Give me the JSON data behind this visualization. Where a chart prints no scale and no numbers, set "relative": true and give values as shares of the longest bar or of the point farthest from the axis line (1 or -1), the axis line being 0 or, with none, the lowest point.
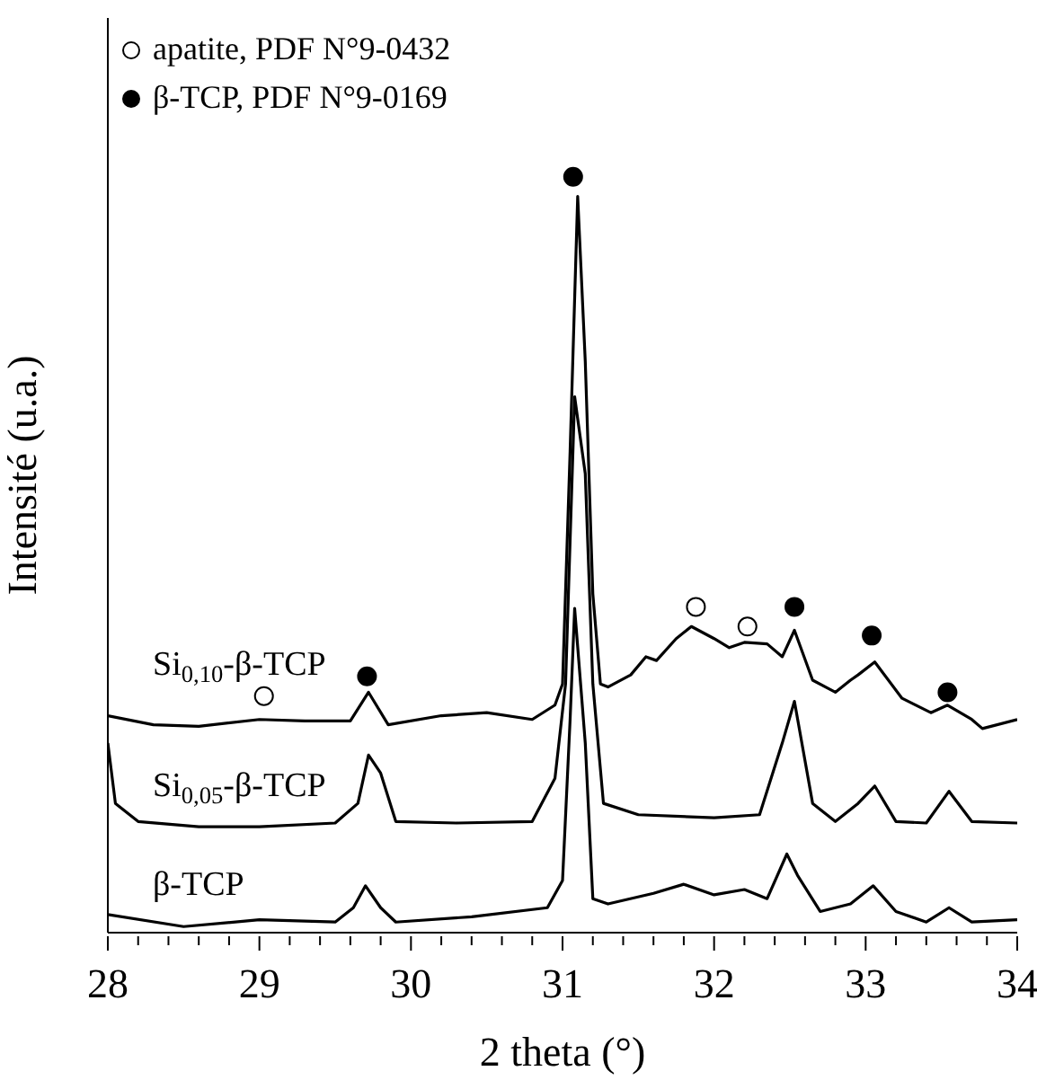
{
  "chart_data": {
    "type": "line",
    "xlabel": "2 theta (°)",
    "ylabel": "Intensité (u.a.)",
    "relative": true,
    "xlim": [
      28,
      34
    ],
    "xticks": [
      28,
      {
        "value": 28.2,
        "label": null
      },
      {
        "value": 28.4,
        "label": null
      },
      {
        "value": 28.6,
        "label": null
      },
      {
        "value": 28.8,
        "label": null
      },
      29,
      {
        "value": 29.2,
        "label": null
      },
      {
        "value": 29.4,
        "label": null
      },
      {
        "value": 29.6,
        "label": null
      },
      {
        "value": 29.8,
        "label": null
      },
      30,
      {
        "value": 30.2,
        "label": null
      },
      {
        "value": 30.4,
        "label": null
      },
      {
        "value": 30.6,
        "label": null
      },
      {
        "value": 30.8,
        "label": null
      },
      31,
      {
        "value": 31.2,
        "label": null
      },
      {
        "value": 31.4,
        "label": null
      },
      {
        "value": 31.6,
        "label": null
      },
      {
        "value": 31.8,
        "label": null
      },
      32,
      {
        "value": 32.2,
        "label": null
      },
      {
        "value": 32.4,
        "label": null
      },
      {
        "value": 32.6,
        "label": null
      },
      {
        "value": 32.8,
        "label": null
      },
      33,
      {
        "value": 33.2,
        "label": null
      },
      {
        "value": 33.4,
        "label": null
      },
      {
        "value": 33.6,
        "label": null
      },
      {
        "value": 33.8,
        "label": null
      },
      34
    ],
    "legend": "top left",
    "grid": false,
    "series": [
      {
        "name": "Si$_{0,10}$-β-TCP",
        "color": "#000000",
        "x": [
          28,
          28.3,
          28.6,
          29,
          29.3,
          29.6,
          29.72,
          29.85,
          30.2,
          30.5,
          30.8,
          30.95,
          31,
          31.05,
          31.1,
          31.15,
          31.2,
          31.25,
          31.3,
          31.45,
          31.55,
          31.62,
          31.75,
          31.85,
          32,
          32.1,
          32.2,
          32.35,
          32.45,
          32.53,
          32.65,
          32.8,
          32.9,
          32.95,
          33.06,
          33.24,
          33.43,
          33.54,
          33.7,
          33.77,
          34
        ],
        "values": [
          0.287,
          0.275,
          0.273,
          0.282,
          0.28,
          0.28,
          0.318,
          0.275,
          0.287,
          0.291,
          0.282,
          0.301,
          0.329,
          0.637,
          0.974,
          0.756,
          0.448,
          0.329,
          0.325,
          0.341,
          0.365,
          0.36,
          0.389,
          0.405,
          0.389,
          0.377,
          0.384,
          0.382,
          0.365,
          0.4,
          0.334,
          0.318,
          0.334,
          0.341,
          0.358,
          0.31,
          0.291,
          0.301,
          0.282,
          0.27,
          0.282
        ]
      },
      {
        "name": "Si$_{0,05}$-β-TCP",
        "color": "#000000",
        "x": [
          28,
          28.05,
          28.2,
          28.6,
          29,
          29.5,
          29.65,
          29.72,
          29.8,
          29.9,
          30.3,
          30.8,
          30.95,
          31.02,
          31.08,
          31.15,
          31.2,
          31.27,
          31.5,
          32,
          32.3,
          32.45,
          32.53,
          32.65,
          32.8,
          32.95,
          33.06,
          33.2,
          33.4,
          33.55,
          33.7,
          34
        ],
        "values": [
          0.251,
          0.171,
          0.147,
          0.14,
          0.14,
          0.145,
          0.171,
          0.235,
          0.211,
          0.147,
          0.145,
          0.147,
          0.204,
          0.329,
          0.709,
          0.607,
          0.329,
          0.171,
          0.156,
          0.152,
          0.156,
          0.251,
          0.306,
          0.171,
          0.147,
          0.171,
          0.194,
          0.147,
          0.145,
          0.187,
          0.147,
          0.145
        ]
      },
      {
        "name": "β-TCP",
        "color": "#000000",
        "x": [
          28,
          28.5,
          29,
          29.5,
          29.62,
          29.7,
          29.8,
          29.9,
          30.4,
          30.9,
          31,
          31.05,
          31.08,
          31.15,
          31.2,
          31.3,
          31.6,
          31.8,
          32,
          32.2,
          32.35,
          32.48,
          32.55,
          32.7,
          32.9,
          33.05,
          33.2,
          33.4,
          33.55,
          33.7,
          34
        ],
        "values": [
          0.024,
          0.008,
          0.017,
          0.014,
          0.033,
          0.062,
          0.033,
          0.014,
          0.021,
          0.033,
          0.069,
          0.282,
          0.429,
          0.251,
          0.045,
          0.038,
          0.052,
          0.064,
          0.05,
          0.057,
          0.045,
          0.104,
          0.076,
          0.028,
          0.038,
          0.062,
          0.028,
          0.014,
          0.033,
          0.014,
          0.017
        ]
      },
      {
        "type": "scatter",
        "name": "apatite, PDF N°9-0432",
        "color": "#ffffff",
        "marker": "circle",
        "x": [
          29.03,
          31.88,
          32.22
        ],
        "values": [
          0.313,
          0.431,
          0.405
        ]
      },
      {
        "type": "scatter",
        "name": "β-TCP, PDF N°9-0169",
        "color": "#000000",
        "marker": "circle",
        "x": [
          29.71,
          31.07,
          32.53,
          33.04,
          33.54
        ],
        "values": [
          0.339,
          1,
          0.431,
          0.393,
          0.318
        ]
      }
    ]
  }
}
